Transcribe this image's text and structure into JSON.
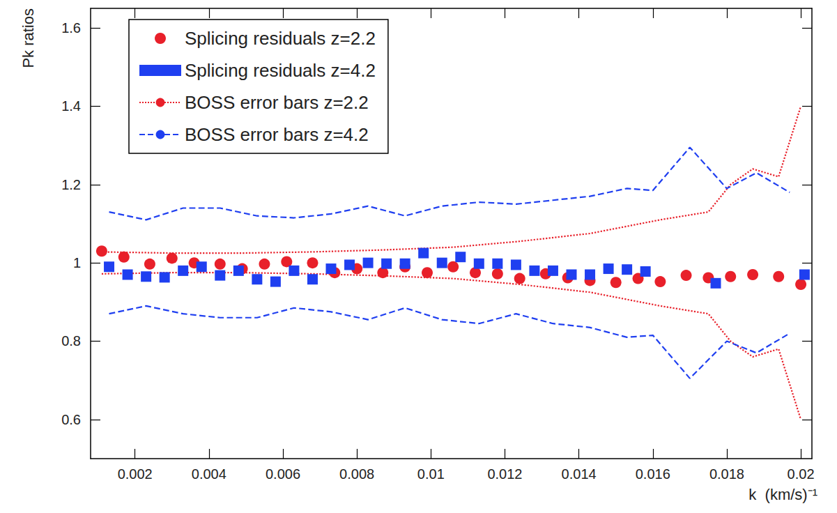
{
  "chart_data": {
    "type": "scatter",
    "x_label": "k  (km/s)⁻¹",
    "y_label": "Pk ratios",
    "xlim": [
      0.0008,
      0.0203
    ],
    "xticks": [
      0.002,
      0.004,
      0.006,
      0.008,
      0.01,
      0.012,
      0.014,
      0.016,
      0.018,
      0.02
    ],
    "ylim": [
      0.5,
      1.65
    ],
    "yticks": [
      0.6,
      0.8,
      1,
      1.2,
      1.4,
      1.6
    ],
    "grid": false,
    "legend": "upper left",
    "series": [
      {
        "name": "Splicing residuals z=2.2",
        "type": "scatter",
        "marker": "circle",
        "color": "#e8202a",
        "x": [
          0.0011,
          0.0017,
          0.0024,
          0.003,
          0.0036,
          0.0043,
          0.0049,
          0.0055,
          0.0061,
          0.0068,
          0.0074,
          0.008,
          0.0087,
          0.0093,
          0.0099,
          0.0106,
          0.0112,
          0.0118,
          0.0124,
          0.0131,
          0.0137,
          0.0143,
          0.015,
          0.0156,
          0.0162,
          0.0169,
          0.0175,
          0.0181,
          0.0187,
          0.0194,
          0.02
        ],
        "values": [
          1.03,
          1.015,
          0.997,
          1.012,
          1.0,
          0.997,
          0.985,
          0.997,
          1.003,
          1.0,
          0.975,
          0.985,
          0.975,
          0.99,
          0.975,
          0.99,
          0.975,
          0.972,
          0.96,
          0.972,
          0.962,
          0.955,
          0.95,
          0.96,
          0.952,
          0.968,
          0.962,
          0.965,
          0.97,
          0.965,
          0.945
        ]
      },
      {
        "name": "Splicing residuals z=4.2",
        "type": "scatter",
        "marker": "square",
        "color": "#1f3ff0",
        "x": [
          0.0013,
          0.0018,
          0.0023,
          0.0028,
          0.0033,
          0.0038,
          0.0043,
          0.0048,
          0.0053,
          0.0058,
          0.0063,
          0.0068,
          0.0073,
          0.0078,
          0.0083,
          0.0088,
          0.0093,
          0.0098,
          0.0103,
          0.0108,
          0.0113,
          0.0118,
          0.0123,
          0.0128,
          0.0133,
          0.0138,
          0.0143,
          0.0148,
          0.0153,
          0.0158,
          0.0177,
          0.0201
        ],
        "values": [
          0.99,
          0.97,
          0.965,
          0.963,
          0.98,
          0.99,
          0.968,
          0.98,
          0.958,
          0.952,
          0.98,
          0.958,
          0.985,
          0.995,
          1.0,
          0.998,
          0.998,
          1.025,
          1.0,
          1.015,
          0.998,
          0.998,
          0.995,
          0.98,
          0.98,
          0.97,
          0.97,
          0.985,
          0.983,
          0.978,
          0.948,
          0.97
        ]
      },
      {
        "name": "BOSS error bars z=2.2",
        "type": "line",
        "line_style": "dotted",
        "color": "#e8202a",
        "x": [
          0.0011,
          0.003,
          0.0049,
          0.0068,
          0.0087,
          0.0106,
          0.0124,
          0.0143,
          0.0162,
          0.0175,
          0.0181,
          0.0187,
          0.0194,
          0.02
        ],
        "upper": [
          1.028,
          1.025,
          1.025,
          1.028,
          1.033,
          1.04,
          1.055,
          1.075,
          1.11,
          1.13,
          1.2,
          1.24,
          1.22,
          1.4
        ],
        "lower": [
          0.972,
          0.975,
          0.975,
          0.972,
          0.967,
          0.96,
          0.945,
          0.925,
          0.89,
          0.87,
          0.8,
          0.76,
          0.78,
          0.6
        ]
      },
      {
        "name": "BOSS error bars z=4.2",
        "type": "line",
        "line_style": "dashed",
        "color": "#1f3ff0",
        "x": [
          0.0013,
          0.0023,
          0.0033,
          0.0043,
          0.0053,
          0.0063,
          0.0073,
          0.0083,
          0.0093,
          0.0103,
          0.0113,
          0.0123,
          0.0133,
          0.0143,
          0.0153,
          0.016,
          0.017,
          0.018,
          0.0188,
          0.0197
        ],
        "upper": [
          1.13,
          1.11,
          1.14,
          1.14,
          1.12,
          1.115,
          1.125,
          1.145,
          1.12,
          1.145,
          1.155,
          1.15,
          1.16,
          1.17,
          1.19,
          1.185,
          1.295,
          1.19,
          1.23,
          1.18
        ],
        "lower": [
          0.87,
          0.89,
          0.87,
          0.86,
          0.86,
          0.885,
          0.875,
          0.855,
          0.885,
          0.855,
          0.845,
          0.87,
          0.845,
          0.835,
          0.81,
          0.815,
          0.705,
          0.8,
          0.77,
          0.82
        ]
      }
    ]
  }
}
